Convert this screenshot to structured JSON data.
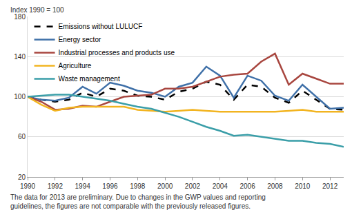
{
  "chart_data": {
    "type": "line",
    "y_label": "Index 1990 = 100",
    "note": [
      "The data for 2013 are preliminary. Due to changes in the GWP values and reporting",
      "guidelines, the figures are not comparable with the previously released figures."
    ],
    "x": [
      1990,
      1991,
      1992,
      1993,
      1994,
      1995,
      1996,
      1997,
      1998,
      1999,
      2000,
      2001,
      2002,
      2003,
      2004,
      2005,
      2006,
      2007,
      2008,
      2009,
      2010,
      2011,
      2012,
      2013
    ],
    "xlim": [
      1990,
      2013
    ],
    "xticks": [
      1990,
      1992,
      1994,
      1996,
      1998,
      2000,
      2002,
      2004,
      2006,
      2008,
      2010,
      2012
    ],
    "ylim": [
      20,
      180
    ],
    "yticks": [
      20,
      60,
      100,
      140,
      180
    ],
    "grid": true,
    "legend": "top-left",
    "series": [
      {
        "name": "Emissions without LULUCF",
        "color": "#000000",
        "line_style": "dashed",
        "values": [
          100,
          97,
          95,
          97,
          104,
          100,
          108,
          106,
          101,
          100,
          97,
          105,
          108,
          115,
          112,
          97,
          112,
          110,
          99,
          94,
          106,
          97,
          88,
          87
        ]
      },
      {
        "name": "Energy sector",
        "color": "#3f70a8",
        "line_style": "solid",
        "values": [
          100,
          97,
          96,
          99,
          110,
          103,
          114,
          111,
          106,
          104,
          100,
          110,
          114,
          130,
          121,
          99,
          121,
          116,
          101,
          96,
          112,
          100,
          88,
          89
        ]
      },
      {
        "name": "Industrial processes and products use",
        "color": "#a8463f",
        "line_style": "solid",
        "values": [
          100,
          95,
          87,
          88,
          91,
          90,
          95,
          100,
          101,
          102,
          108,
          108,
          110,
          115,
          120,
          122,
          123,
          135,
          143,
          112,
          123,
          118,
          113,
          113
        ]
      },
      {
        "name": "Agriculture",
        "color": "#f2b420",
        "line_style": "solid",
        "values": [
          100,
          92,
          86,
          89,
          90,
          90,
          90,
          90,
          87,
          86,
          85,
          86,
          87,
          86,
          85,
          85,
          85,
          85,
          85,
          86,
          87,
          85,
          85,
          85
        ]
      },
      {
        "name": "Waste management",
        "color": "#3a9ea8",
        "line_style": "solid",
        "values": [
          100,
          101,
          102,
          102,
          100,
          98,
          96,
          93,
          90,
          88,
          84,
          80,
          75,
          70,
          66,
          61,
          62,
          60,
          58,
          56,
          56,
          54,
          53,
          50
        ]
      }
    ]
  }
}
